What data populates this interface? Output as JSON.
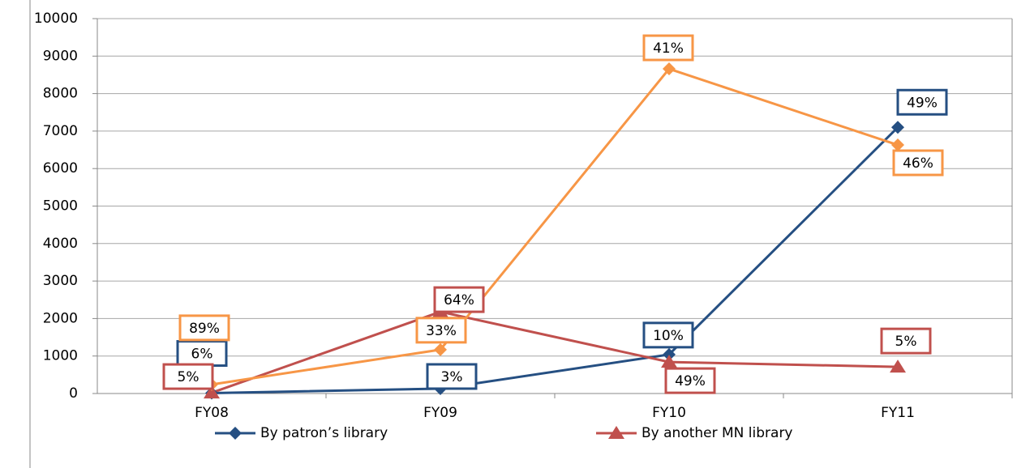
{
  "chart_data": {
    "type": "line",
    "categories": [
      "FY08",
      "FY09",
      "FY10",
      "FY11"
    ],
    "series": [
      {
        "name": "By patron’s library",
        "color": "#254f82",
        "marker": "diamond",
        "values": [
          10,
          130,
          1040,
          7100
        ],
        "point_labels": [
          "6%",
          "3%",
          "10%",
          "49%"
        ]
      },
      {
        "name": "By another MN library",
        "color": "#c0504d",
        "marker": "triangle",
        "values": [
          20,
          2180,
          840,
          710
        ],
        "point_labels": [
          "5%",
          "64%",
          "49%",
          "5%"
        ]
      },
      {
        "color": "#f79646",
        "marker": "diamond",
        "values": [
          240,
          1170,
          8660,
          6630
        ],
        "point_labels": [
          "89%",
          "33%",
          "41%",
          "46%"
        ]
      }
    ],
    "ylim": [
      0,
      10000
    ],
    "yticks": [
      0,
      1000,
      2000,
      3000,
      4000,
      5000,
      6000,
      7000,
      8000,
      9000,
      10000
    ],
    "grid": true
  }
}
